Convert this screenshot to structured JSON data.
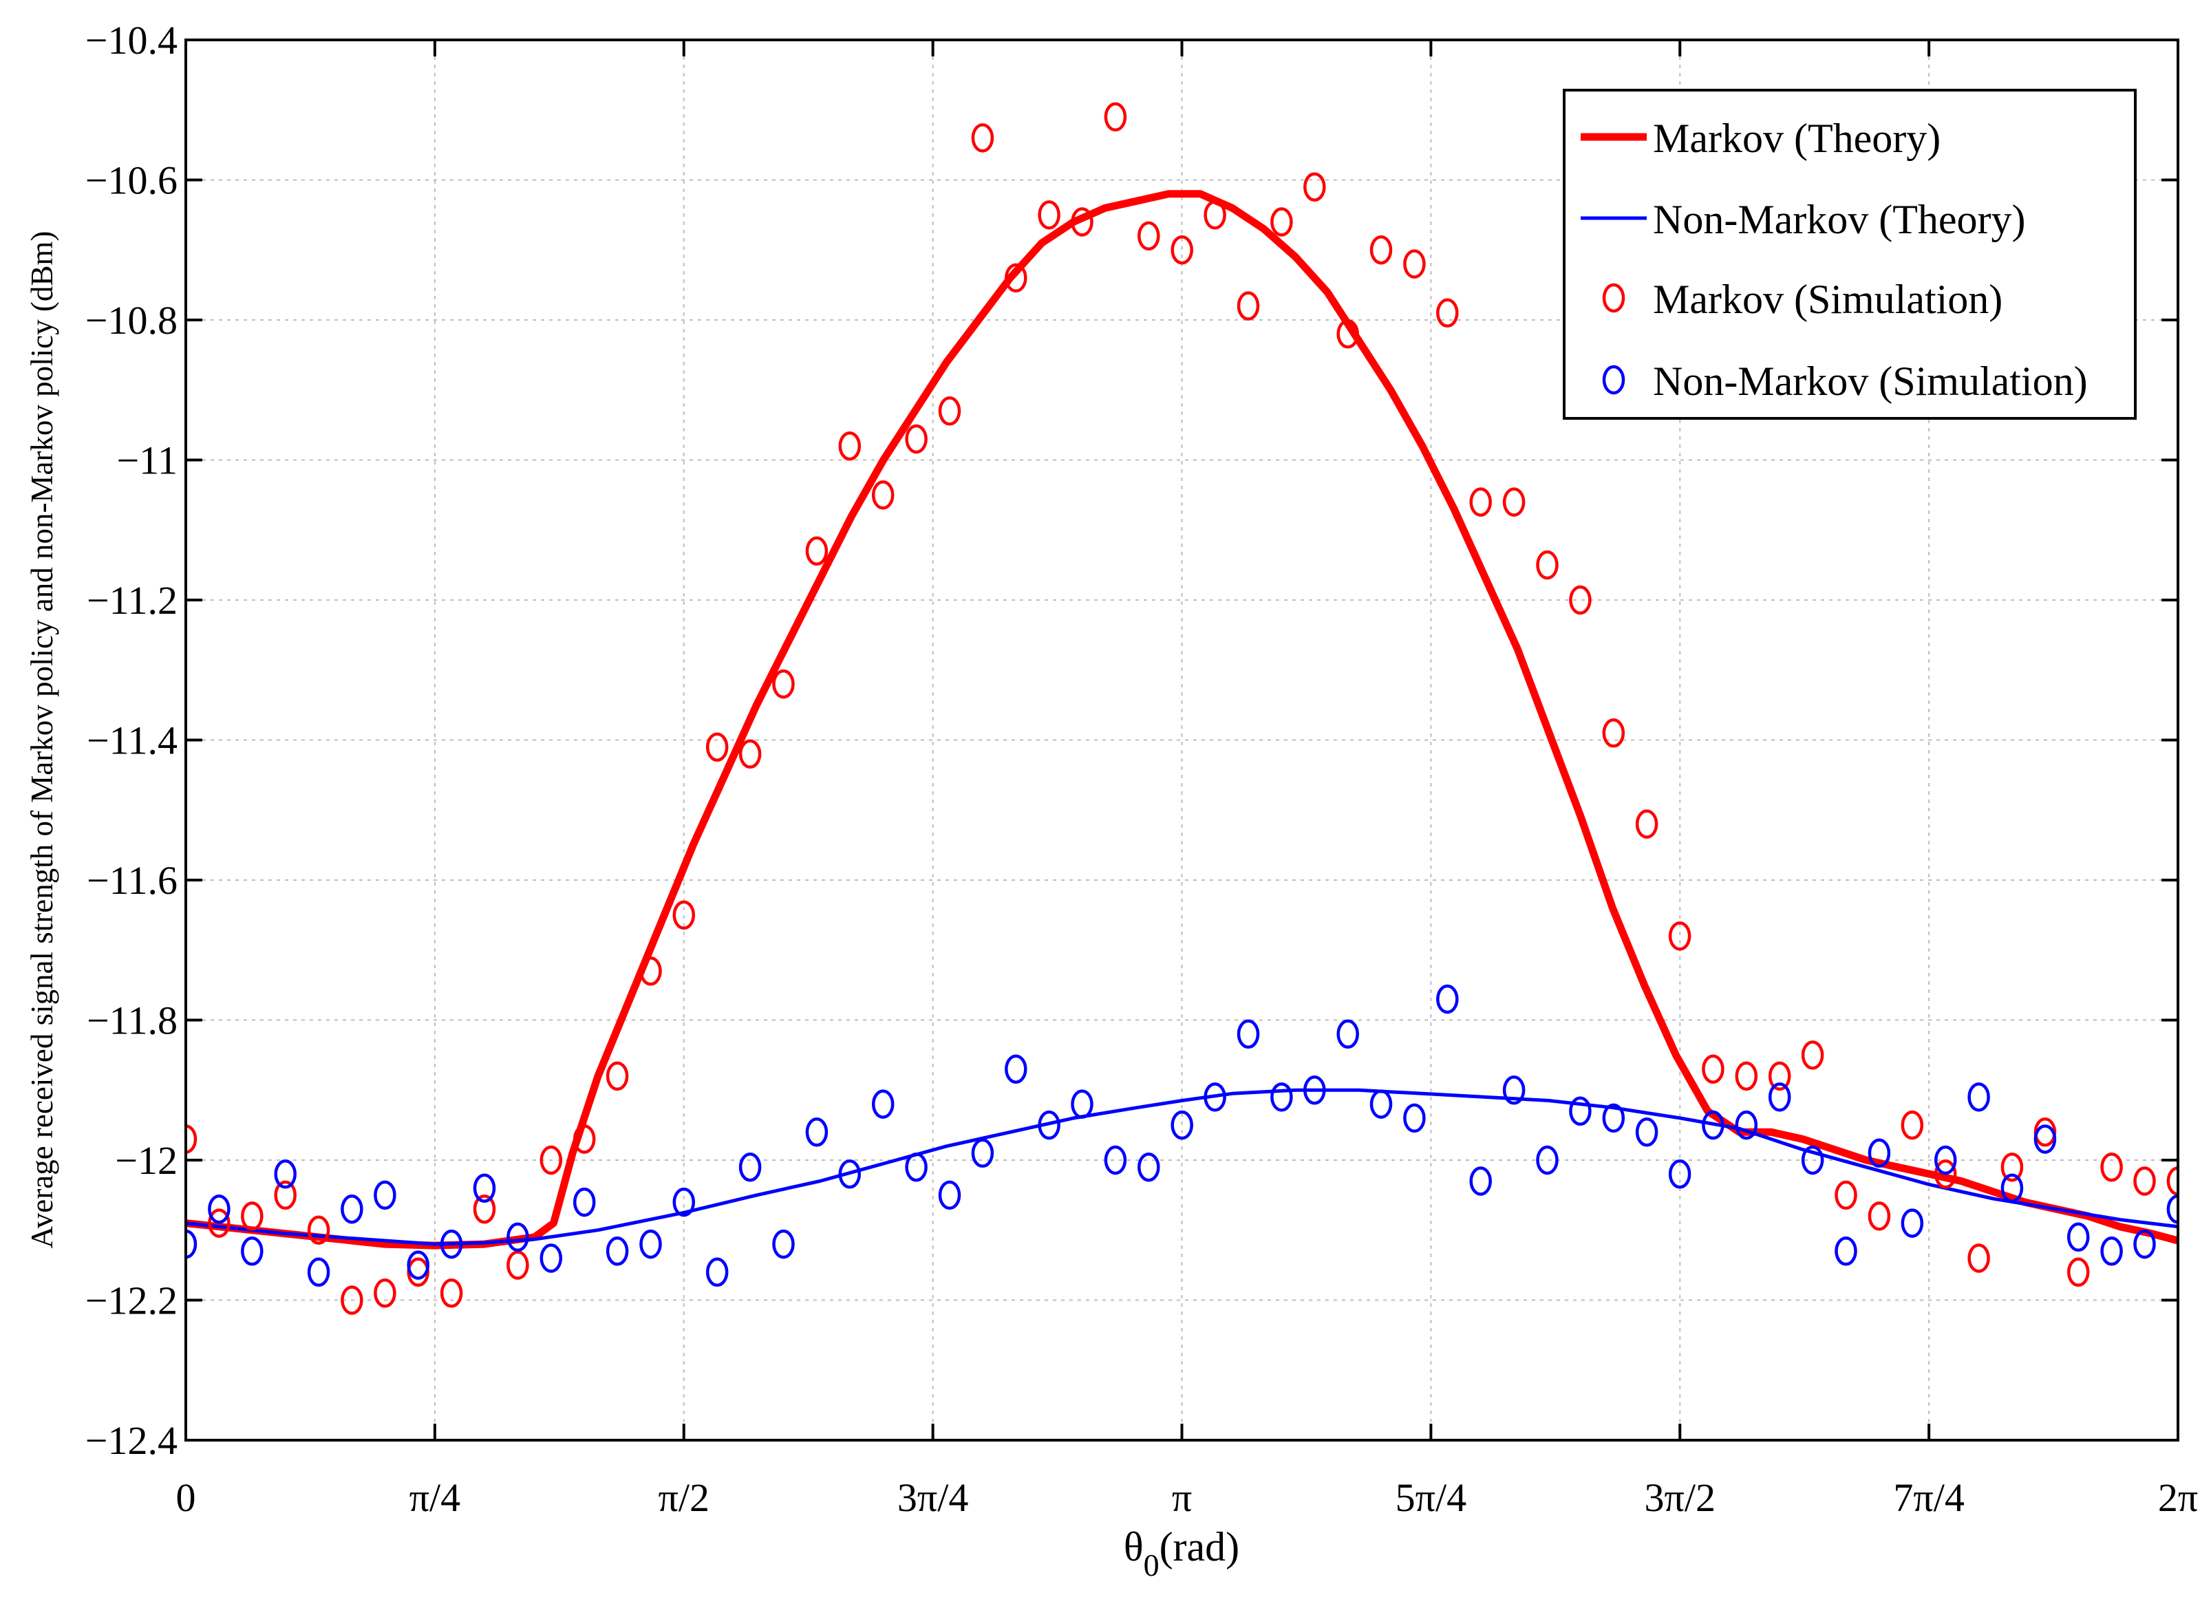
{
  "chart_data": {
    "type": "line",
    "title": "",
    "xlabel_main": "θ",
    "xlabel_sub": "0",
    "xlabel_unit": "(rad)",
    "ylabel": "Average received signal strength of Markov policy and non-Markov policy (dBm)",
    "xlim": [
      0,
      6.2832
    ],
    "ylim": [
      -12.4,
      -10.4
    ],
    "grid": true,
    "legend_position": "top-right",
    "xticks": [
      {
        "value": 0,
        "label": "0"
      },
      {
        "value": 0.7854,
        "label": "π/4"
      },
      {
        "value": 1.5708,
        "label": "π/2"
      },
      {
        "value": 2.3562,
        "label": "3π/4"
      },
      {
        "value": 3.1416,
        "label": "π"
      },
      {
        "value": 3.927,
        "label": "5π/4"
      },
      {
        "value": 4.7124,
        "label": "3π/2"
      },
      {
        "value": 5.4978,
        "label": "7π/4"
      },
      {
        "value": 6.2832,
        "label": "2π"
      }
    ],
    "yticks": [
      {
        "value": -10.4,
        "label": "−10.4"
      },
      {
        "value": -10.6,
        "label": "−10.6"
      },
      {
        "value": -10.8,
        "label": "−10.8"
      },
      {
        "value": -11.0,
        "label": "−11"
      },
      {
        "value": -11.2,
        "label": "−11.2"
      },
      {
        "value": -11.4,
        "label": "−11.4"
      },
      {
        "value": -11.6,
        "label": "−11.6"
      },
      {
        "value": -11.8,
        "label": "−11.8"
      },
      {
        "value": -12.0,
        "label": "−12"
      },
      {
        "value": -12.2,
        "label": "−12.2"
      },
      {
        "value": -12.4,
        "label": "−12.4"
      }
    ],
    "series": [
      {
        "name": "Markov (Theory)",
        "kind": "line",
        "color": "#ff0000",
        "width": "thick",
        "x": [
          0,
          0.314,
          0.628,
          0.785,
          0.942,
          1.1,
          1.16,
          1.22,
          1.3,
          1.4,
          1.5,
          1.6,
          1.7,
          1.8,
          1.9,
          2.0,
          2.1,
          2.2,
          2.3,
          2.4,
          2.5,
          2.6,
          2.7,
          2.8,
          2.9,
          3.0,
          3.1,
          3.1416,
          3.2,
          3.3,
          3.4,
          3.5,
          3.6,
          3.7,
          3.8,
          3.9,
          4.0,
          4.1,
          4.2,
          4.3,
          4.4,
          4.5,
          4.6,
          4.7,
          4.8,
          4.9,
          5.0,
          5.1,
          5.2,
          5.3,
          5.4,
          5.5,
          5.6,
          5.7,
          5.8,
          5.9,
          6.0,
          6.1,
          6.2,
          6.2832
        ],
        "y": [
          -12.09,
          -12.105,
          -12.12,
          -12.122,
          -12.12,
          -12.11,
          -12.09,
          -11.99,
          -11.88,
          -11.77,
          -11.66,
          -11.55,
          -11.45,
          -11.35,
          -11.26,
          -11.17,
          -11.08,
          -11.0,
          -10.93,
          -10.86,
          -10.8,
          -10.74,
          -10.69,
          -10.66,
          -10.64,
          -10.63,
          -10.62,
          -10.62,
          -10.62,
          -10.64,
          -10.67,
          -10.71,
          -10.76,
          -10.83,
          -10.9,
          -10.98,
          -11.07,
          -11.17,
          -11.27,
          -11.39,
          -11.51,
          -11.64,
          -11.75,
          -11.85,
          -11.93,
          -11.96,
          -11.96,
          -11.97,
          -11.985,
          -12.0,
          -12.01,
          -12.02,
          -12.03,
          -12.045,
          -12.06,
          -12.07,
          -12.08,
          -12.095,
          -12.105,
          -12.115
        ]
      },
      {
        "name": "Non-Markov (Theory)",
        "kind": "line",
        "color": "#0000ff",
        "width": "thin",
        "x": [
          0,
          0.314,
          0.628,
          0.785,
          0.942,
          1.1,
          1.3,
          1.5708,
          1.8,
          2.0,
          2.2,
          2.4,
          2.6,
          2.8,
          3.0,
          3.1416,
          3.3,
          3.5,
          3.7,
          3.9,
          4.1,
          4.3,
          4.5,
          4.7124,
          4.9,
          5.1,
          5.3,
          5.5,
          5.7,
          5.9,
          6.1,
          6.2832
        ],
        "y": [
          -12.09,
          -12.105,
          -12.115,
          -12.12,
          -12.118,
          -12.113,
          -12.1,
          -12.075,
          -12.05,
          -12.03,
          -12.005,
          -11.98,
          -11.96,
          -11.94,
          -11.925,
          -11.915,
          -11.905,
          -11.9,
          -11.9,
          -11.905,
          -11.91,
          -11.915,
          -11.925,
          -11.94,
          -11.955,
          -11.985,
          -12.01,
          -12.035,
          -12.055,
          -12.07,
          -12.085,
          -12.095
        ]
      },
      {
        "name": "Markov (Simulation)",
        "kind": "scatter",
        "color": "#ff0000",
        "x": [
          0.0,
          0.105,
          0.209,
          0.314,
          0.419,
          0.524,
          0.628,
          0.733,
          0.838,
          0.942,
          1.047,
          1.152,
          1.257,
          1.361,
          1.466,
          1.571,
          1.676,
          1.78,
          1.885,
          1.99,
          2.094,
          2.199,
          2.304,
          2.409,
          2.513,
          2.618,
          2.723,
          2.827,
          2.932,
          3.037,
          3.142,
          3.246,
          3.351,
          3.456,
          3.56,
          3.665,
          3.77,
          3.875,
          3.979,
          4.084,
          4.189,
          4.294,
          4.398,
          4.503,
          4.608,
          4.712,
          4.817,
          4.922,
          5.027,
          5.131,
          5.236,
          5.341,
          5.445,
          5.55,
          5.655,
          5.76,
          5.864,
          5.969,
          6.074,
          6.178,
          6.283
        ],
        "y": [
          -11.97,
          -12.09,
          -12.08,
          -12.05,
          -12.1,
          -12.2,
          -12.19,
          -12.16,
          -12.19,
          -12.07,
          -12.15,
          -12.0,
          -11.97,
          -11.88,
          -11.73,
          -11.65,
          -11.41,
          -11.42,
          -11.32,
          -11.13,
          -10.98,
          -11.05,
          -10.97,
          -10.93,
          -10.54,
          -10.74,
          -10.65,
          -10.66,
          -10.51,
          -10.68,
          -10.7,
          -10.65,
          -10.78,
          -10.66,
          -10.61,
          -10.82,
          -10.7,
          -10.72,
          -10.79,
          -11.06,
          -11.06,
          -11.15,
          -11.2,
          -11.39,
          -11.52,
          -11.68,
          -11.87,
          -11.88,
          -11.88,
          -11.85,
          -12.05,
          -12.08,
          -11.95,
          -12.02,
          -12.14,
          -12.01,
          -11.96,
          -12.16,
          -12.01,
          -12.03,
          -12.03
        ]
      },
      {
        "name": "Non-Markov (Simulation)",
        "kind": "scatter",
        "color": "#0000ff",
        "x": [
          0.0,
          0.105,
          0.209,
          0.314,
          0.419,
          0.524,
          0.628,
          0.733,
          0.838,
          0.942,
          1.047,
          1.152,
          1.257,
          1.361,
          1.466,
          1.571,
          1.676,
          1.78,
          1.885,
          1.99,
          2.094,
          2.199,
          2.304,
          2.409,
          2.513,
          2.618,
          2.723,
          2.827,
          2.932,
          3.037,
          3.142,
          3.246,
          3.351,
          3.456,
          3.56,
          3.665,
          3.77,
          3.875,
          3.979,
          4.084,
          4.189,
          4.294,
          4.398,
          4.503,
          4.608,
          4.712,
          4.817,
          4.922,
          5.027,
          5.131,
          5.236,
          5.341,
          5.445,
          5.55,
          5.655,
          5.76,
          5.864,
          5.969,
          6.074,
          6.178,
          6.283
        ],
        "y": [
          -12.12,
          -12.07,
          -12.13,
          -12.02,
          -12.16,
          -12.07,
          -12.05,
          -12.15,
          -12.12,
          -12.04,
          -12.11,
          -12.14,
          -12.06,
          -12.13,
          -12.12,
          -12.06,
          -12.16,
          -12.01,
          -12.12,
          -11.96,
          -12.02,
          -11.92,
          -12.01,
          -12.05,
          -11.99,
          -11.87,
          -11.95,
          -11.92,
          -12.0,
          -12.01,
          -11.95,
          -11.91,
          -11.82,
          -11.91,
          -11.9,
          -11.82,
          -11.92,
          -11.94,
          -11.77,
          -12.03,
          -11.9,
          -12.0,
          -11.93,
          -11.94,
          -11.96,
          -12.02,
          -11.95,
          -11.95,
          -11.91,
          -12.0,
          -12.13,
          -11.99,
          -12.09,
          -12.0,
          -11.91,
          -12.04,
          -11.97,
          -12.11,
          -12.13,
          -12.12,
          -12.07
        ]
      }
    ]
  }
}
